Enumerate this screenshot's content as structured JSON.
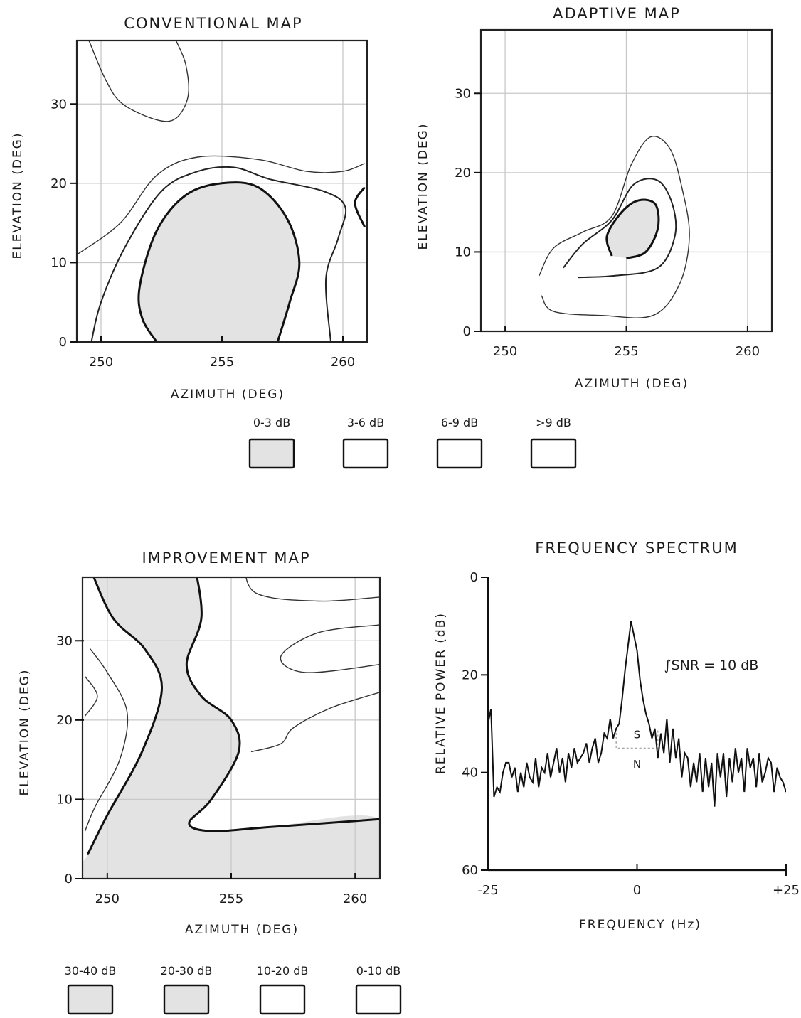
{
  "chart_data": [
    {
      "id": "conventional",
      "type": "contour",
      "title": "CONVENTIONAL MAP",
      "xlabel": "AZIMUTH (DEG)",
      "ylabel": "ELEVATION (DEG)",
      "xlim": [
        249,
        261
      ],
      "ylim": [
        0,
        38
      ],
      "xticks": [
        250,
        255,
        260
      ],
      "yticks": [
        0,
        10,
        20,
        30
      ],
      "legend": [
        {
          "label": "0-3 dB",
          "fill": "#e3e3e3"
        },
        {
          "label": "3-6 dB",
          "fill": "#ffffff"
        },
        {
          "label": "6-9 dB",
          "fill": "#ffffff"
        },
        {
          "label": ">9 dB",
          "fill": "#ffffff"
        }
      ],
      "contours": [
        {
          "level": "0-3 dB",
          "style": "thick",
          "shade": true,
          "points": [
            [
              252.3,
              0
            ],
            [
              251.7,
              3
            ],
            [
              251.6,
              7
            ],
            [
              252.3,
              14
            ],
            [
              253.5,
              18.5
            ],
            [
              255,
              20
            ],
            [
              256.5,
              19.5
            ],
            [
              257.7,
              15.5
            ],
            [
              258.2,
              10
            ],
            [
              257.8,
              5
            ],
            [
              257.3,
              0
            ]
          ]
        },
        {
          "level": "3-6 dB",
          "style": "med",
          "points": [
            [
              249.6,
              0
            ],
            [
              250,
              5
            ],
            [
              251,
              12
            ],
            [
              252.5,
              19
            ],
            [
              254,
              21.5
            ],
            [
              255.5,
              22
            ],
            [
              257,
              20.5
            ],
            [
              259.2,
              19
            ],
            [
              260.1,
              17
            ],
            [
              259.8,
              13
            ],
            [
              259.3,
              8
            ],
            [
              259.5,
              0
            ]
          ]
        },
        {
          "level": "6-9 dB",
          "style": "thin",
          "points": [
            [
              249,
              11
            ],
            [
              250.8,
              15
            ],
            [
              252.3,
              21
            ],
            [
              254,
              23.3
            ],
            [
              256.5,
              23
            ],
            [
              258.5,
              21.5
            ],
            [
              260,
              21.5
            ],
            [
              260.9,
              22.5
            ]
          ]
        },
        {
          "level": "6-9 dB",
          "style": "thin",
          "points": [
            [
              249.5,
              38
            ],
            [
              250.2,
              33
            ],
            [
              250.9,
              30
            ],
            [
              252.3,
              28
            ],
            [
              253.1,
              28.2
            ],
            [
              253.6,
              31
            ],
            [
              253.5,
              35
            ],
            [
              253.1,
              38
            ]
          ]
        },
        {
          "level": "3-6 dB",
          "style": "thick",
          "points": [
            [
              260.9,
              19.5
            ],
            [
              260.5,
              17.5
            ],
            [
              260.9,
              14.5
            ]
          ]
        }
      ]
    },
    {
      "id": "adaptive",
      "type": "contour",
      "title": "ADAPTIVE MAP",
      "xlabel": "AZIMUTH (DEG)",
      "ylabel": "ELEVATION (DEG)",
      "xlim": [
        249,
        261
      ],
      "ylim": [
        0,
        38
      ],
      "xticks": [
        250,
        255,
        260
      ],
      "yticks": [
        0,
        10,
        20,
        30
      ],
      "contours": [
        {
          "level": "0-3 dB",
          "style": "thick",
          "shade": true,
          "points": [
            [
              254.4,
              9.5
            ],
            [
              254.2,
              12
            ],
            [
              254.8,
              15
            ],
            [
              255.5,
              16.5
            ],
            [
              256.2,
              16
            ],
            [
              256.3,
              13
            ],
            [
              255.8,
              10
            ],
            [
              255,
              9.2
            ]
          ]
        },
        {
          "level": "3-6 dB",
          "style": "med",
          "points": [
            [
              252.4,
              8
            ],
            [
              253.2,
              11
            ],
            [
              254.4,
              14
            ],
            [
              255.3,
              18.5
            ],
            [
              256.3,
              19
            ],
            [
              256.9,
              16
            ],
            [
              257,
              12
            ],
            [
              256.3,
              8
            ],
            [
              254.5,
              7
            ],
            [
              253,
              6.8
            ]
          ]
        },
        {
          "level": "6-9 dB",
          "style": "thin",
          "points": [
            [
              251.4,
              7
            ],
            [
              252,
              10.5
            ],
            [
              253.2,
              12.5
            ],
            [
              254.4,
              14.5
            ],
            [
              255.2,
              21
            ],
            [
              256,
              24.5
            ],
            [
              256.8,
              23
            ],
            [
              257.3,
              18
            ],
            [
              257.6,
              12
            ],
            [
              257.2,
              6
            ],
            [
              256.1,
              2
            ],
            [
              254,
              2
            ],
            [
              252,
              2.5
            ],
            [
              251.5,
              4.5
            ]
          ]
        }
      ]
    },
    {
      "id": "improvement",
      "type": "contour",
      "title": "IMPROVEMENT MAP",
      "xlabel": "AZIMUTH (DEG)",
      "ylabel": "ELEVATION (DEG)",
      "xlim": [
        249,
        261
      ],
      "ylim": [
        0,
        38
      ],
      "xticks": [
        250,
        255,
        260
      ],
      "yticks": [
        0,
        10,
        20,
        30
      ],
      "legend": [
        {
          "label": "30-40 dB",
          "fill": "#e3e3e3"
        },
        {
          "label": "20-30 dB",
          "fill": "#e3e3e3"
        },
        {
          "label": "10-20 dB",
          "fill": "#ffffff"
        },
        {
          "label": "0-10 dB",
          "fill": "#ffffff"
        }
      ],
      "contours": [
        {
          "level": "20-30 dB",
          "style": "thick",
          "points": [
            [
              249.2,
              40
            ],
            [
              250.2,
              33
            ],
            [
              251.5,
              29
            ],
            [
              252.2,
              24
            ],
            [
              251.4,
              16
            ],
            [
              250,
              8
            ],
            [
              249.2,
              3
            ]
          ]
        },
        {
          "level": "20-30 dB",
          "style": "thick",
          "points": [
            [
              253.5,
              40
            ],
            [
              253.8,
              33
            ],
            [
              253.2,
              27
            ],
            [
              253.8,
              23
            ],
            [
              255,
              20
            ],
            [
              255.3,
              16
            ],
            [
              254.2,
              10
            ],
            [
              253.3,
              7
            ],
            [
              254.2,
              6
            ],
            [
              256.5,
              6.5
            ],
            [
              261,
              7.5
            ]
          ]
        },
        {
          "level": "10-20 dB",
          "style": "thin",
          "points": [
            [
              249.3,
              29
            ],
            [
              250,
              26
            ],
            [
              250.8,
              21
            ],
            [
              250.5,
              15
            ],
            [
              249.5,
              9
            ],
            [
              249.1,
              6
            ]
          ]
        },
        {
          "level": "10-20 dB",
          "style": "thin",
          "points": [
            [
              255.5,
              40
            ],
            [
              256,
              36
            ],
            [
              258.5,
              35
            ],
            [
              261,
              35.5
            ]
          ]
        },
        {
          "level": "10-20 dB",
          "style": "thin",
          "points": [
            [
              261,
              32
            ],
            [
              258.5,
              31
            ],
            [
              257,
              28
            ],
            [
              258,
              26
            ],
            [
              261,
              27
            ]
          ]
        },
        {
          "level": "10-20 dB",
          "style": "thin",
          "points": [
            [
              255.8,
              16
            ],
            [
              257,
              17
            ],
            [
              257.5,
              19
            ],
            [
              259,
              21.5
            ],
            [
              261,
              23.5
            ]
          ]
        },
        {
          "level": "10-20 dB",
          "style": "thin",
          "points": [
            [
              249.1,
              25.5
            ],
            [
              249.6,
              23
            ],
            [
              249.1,
              20.5
            ]
          ]
        }
      ]
    },
    {
      "id": "spectrum",
      "type": "line",
      "title": "FREQUENCY SPECTRUM",
      "xlabel": "FREQUENCY (Hz)",
      "ylabel": "RELATIVE POWER (dB)",
      "xlim": [
        -25,
        25
      ],
      "ylim": [
        60,
        0
      ],
      "xticks": [
        -25,
        0,
        25
      ],
      "xtick_labels": [
        "-25",
        "0",
        "+25"
      ],
      "yticks": [
        0,
        20,
        40,
        60
      ],
      "annotation": "∫SNR = 10 dB",
      "band_labels": {
        "signal": "S",
        "noise": "N"
      },
      "band_x": [
        -3.5,
        3.5
      ],
      "band_level": 35,
      "series": [
        {
          "x": [
            -25,
            -24.5,
            -24,
            -23.5,
            -23,
            -22.5,
            -22,
            -21.5,
            -21,
            -20.5,
            -20,
            -19.5,
            -19,
            -18.5,
            -18,
            -17.5,
            -17,
            -16.5,
            -16,
            -15.5,
            -15,
            -14.5,
            -14,
            -13.5,
            -13,
            -12.5,
            -12,
            -11.5,
            -11,
            -10.5,
            -10,
            -9.5,
            -9,
            -8.5,
            -8,
            -7.5,
            -7,
            -6.5,
            -6,
            -5.5,
            -5,
            -4.5,
            -4,
            -3.5,
            -3,
            -2.5,
            -2,
            -1.5,
            -1,
            -0.5,
            0,
            0.5,
            1,
            1.5,
            2,
            2.5,
            3,
            3.5,
            4,
            4.5,
            5,
            5.5,
            6,
            6.5,
            7,
            7.5,
            8,
            8.5,
            9,
            9.5,
            10,
            10.5,
            11,
            11.5,
            12,
            12.5,
            13,
            13.5,
            14,
            14.5,
            15,
            15.5,
            16,
            16.5,
            17,
            17.5,
            18,
            18.5,
            19,
            19.5,
            20,
            20.5,
            21,
            21.5,
            22,
            22.5,
            23,
            23.5,
            24,
            24.5,
            25
          ],
          "y": [
            30,
            27,
            45,
            43,
            44,
            40,
            38,
            38,
            41,
            39,
            44,
            40,
            43,
            38,
            41,
            42,
            37,
            43,
            39,
            40,
            36,
            41,
            38,
            35,
            40,
            37,
            42,
            36,
            39,
            35,
            38,
            37,
            36,
            34,
            38,
            35,
            33,
            38,
            36,
            32,
            33,
            29,
            33,
            31,
            30,
            25,
            19,
            14,
            9,
            12,
            15,
            21,
            25,
            28,
            30,
            33,
            31,
            37,
            32,
            36,
            29,
            38,
            31,
            37,
            33,
            41,
            36,
            37,
            43,
            38,
            42,
            36,
            44,
            37,
            43,
            38,
            47,
            36,
            41,
            36,
            45,
            37,
            42,
            35,
            40,
            37,
            44,
            35,
            39,
            37,
            43,
            36,
            42,
            40,
            37,
            38,
            44,
            39,
            41,
            42,
            44
          ]
        }
      ]
    }
  ]
}
